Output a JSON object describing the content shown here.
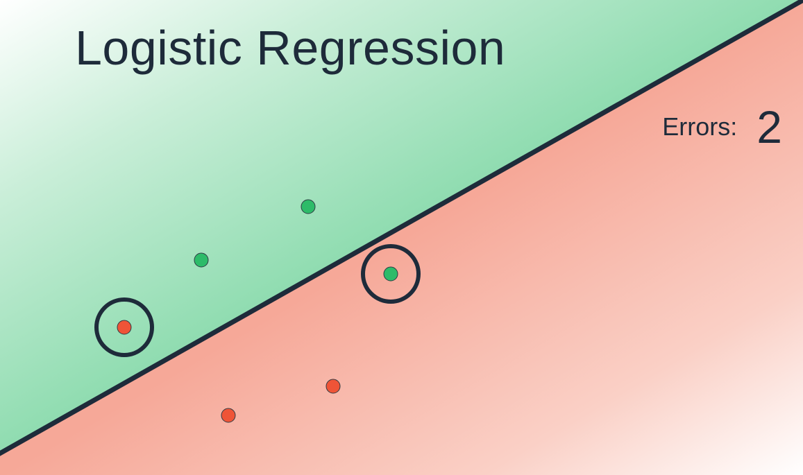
{
  "title": "Logistic Regression",
  "errors": {
    "label": "Errors:",
    "value": "2"
  },
  "colors": {
    "green_region": "#8fdcb0",
    "red_region": "#f6a898",
    "green_point": "#2dbb69",
    "red_point": "#ef5437",
    "line": "#1e2b3a",
    "text": "#1e2b3a"
  },
  "points": [
    {
      "class": "green",
      "misclassified": false
    },
    {
      "class": "green",
      "misclassified": false
    },
    {
      "class": "green",
      "misclassified": true
    },
    {
      "class": "red",
      "misclassified": true
    },
    {
      "class": "red",
      "misclassified": false
    },
    {
      "class": "red",
      "misclassified": false
    }
  ]
}
